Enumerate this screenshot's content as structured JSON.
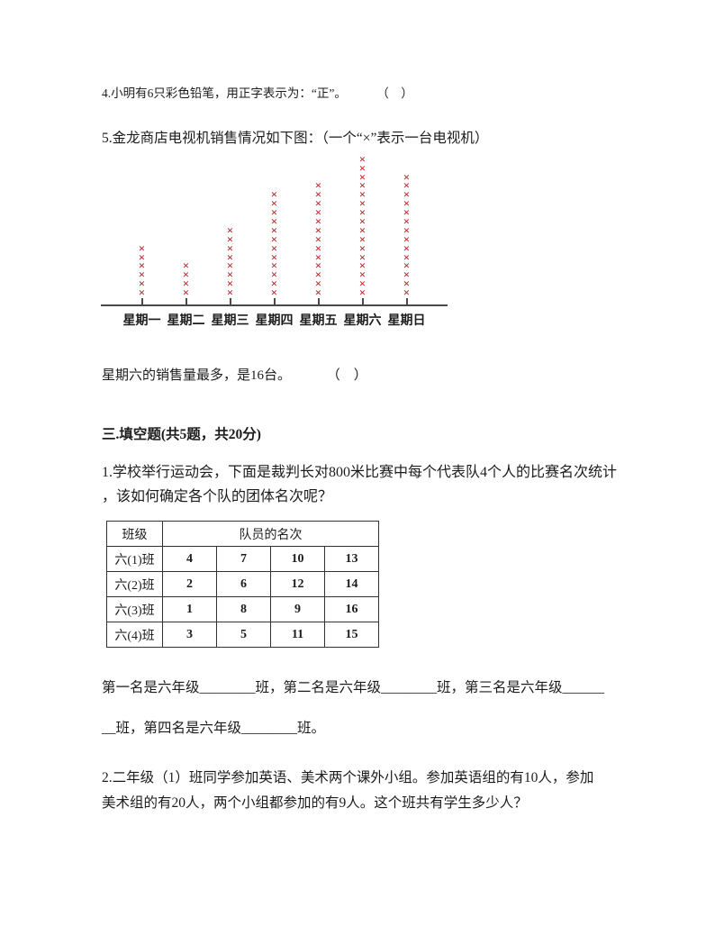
{
  "page": {
    "background": "#ffffff",
    "text_color": "#1c1c1c",
    "accent_red": "#b22222"
  },
  "questions": {
    "q4": {
      "text": "4.小明有6只彩色铅笔，用正字表示为：“正”。",
      "bracket": "（　）"
    },
    "q5": {
      "text": "5.金龙商店电视机销售情况如下图：（一个“×”表示一台电视机）"
    },
    "q5_statement": {
      "text": "星期六的销售量最多，是16台。",
      "bracket": "（　）"
    }
  },
  "chart_data": {
    "type": "pictograph",
    "title": "金龙商店电视机销售情况",
    "unit_note": "一个“×”表示一台电视机",
    "symbol": "×",
    "symbol_color": "#b22222",
    "categories": [
      "星期一",
      "星期二",
      "星期三",
      "星期四",
      "星期五",
      "星期六",
      "星期日"
    ],
    "values": [
      6,
      4,
      8,
      12,
      13,
      16,
      14
    ],
    "max_value_label": "星期六的销售量最多，是16台"
  },
  "section3": {
    "header": "三.填空题(共5题，共20分)",
    "q1": {
      "line1": "1.学校举行运动会，下面是裁判长对800米比赛中每个代表队4个人的比赛名次统计",
      "line2": "，该如何确定各个队的团体名次呢？"
    },
    "table": {
      "corner_header": "班级",
      "span_header": "队员的名次",
      "rows": [
        {
          "label": "六(1)班",
          "values": [
            "4",
            "7",
            "10",
            "13"
          ]
        },
        {
          "label": "六(2)班",
          "values": [
            "2",
            "6",
            "12",
            "14"
          ]
        },
        {
          "label": "六(3)班",
          "values": [
            "1",
            "8",
            "9",
            "16"
          ]
        },
        {
          "label": "六(4)班",
          "values": [
            "3",
            "5",
            "11",
            "15"
          ]
        }
      ]
    },
    "blanks": {
      "line1": "第一名是六年级________班，第二名是六年级________班，第三名是六年级______",
      "line2": "__班，第四名是六年级________班。"
    },
    "q2": {
      "line1": "2.二年级（1）班同学参加英语、美术两个课外小组。参加英语组的有10人，参加",
      "line2": "美术组的有20人，两个小组都参加的有9人。这个班共有学生多少人？"
    }
  }
}
